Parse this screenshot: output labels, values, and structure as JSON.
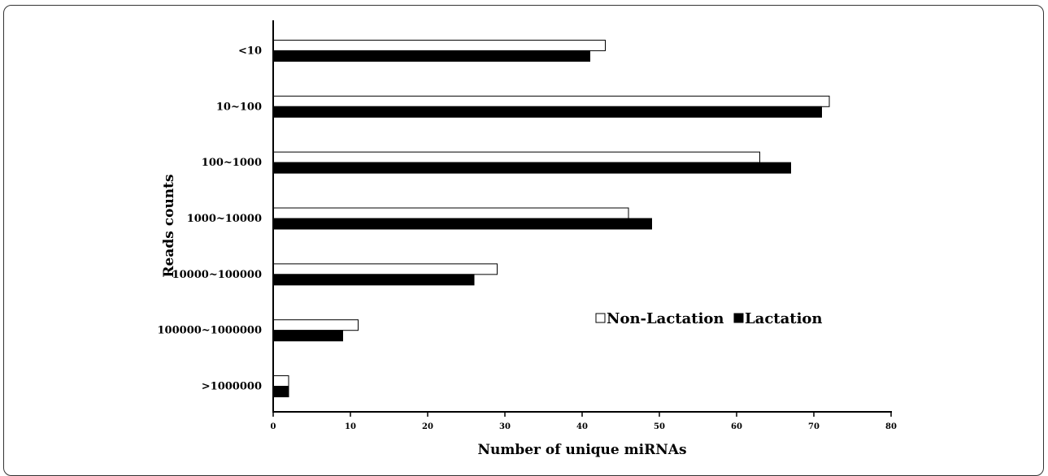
{
  "chart_data": {
    "type": "bar",
    "orientation": "horizontal",
    "categories": [
      "<10",
      "10~100",
      "100~1000",
      "1000~10000",
      "10000~100000",
      "100000~1000000",
      ">1000000"
    ],
    "series": [
      {
        "name": "Non-Lactation",
        "color": "#ffffff",
        "values": [
          43,
          72,
          63,
          46,
          29,
          11,
          2
        ]
      },
      {
        "name": "Lactation",
        "color": "#000000",
        "values": [
          41,
          71,
          67,
          49,
          26,
          9,
          2
        ]
      }
    ],
    "xlabel": "Number of unique miRNAs",
    "ylabel": "Reads counts",
    "xlim": [
      0,
      80
    ],
    "xticks": [
      "0",
      "10",
      "20",
      "30",
      "40",
      "50",
      "60",
      "70",
      "80"
    ],
    "grid": false,
    "legend_position": "right-center"
  }
}
